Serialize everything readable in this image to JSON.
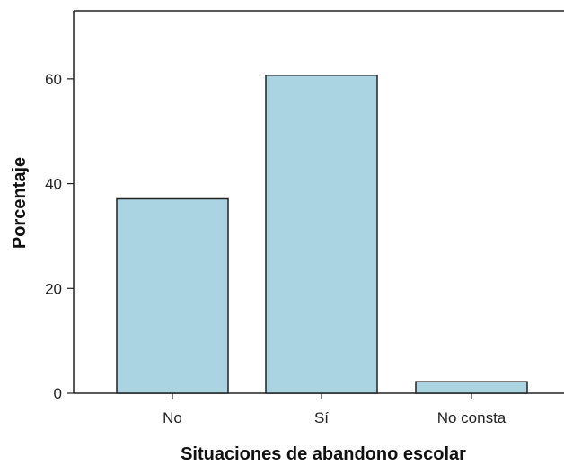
{
  "chart_data": {
    "type": "bar",
    "categories": [
      "No",
      "Sí",
      "No consta"
    ],
    "values": [
      37.1,
      60.7,
      2.2
    ],
    "title": "",
    "xlabel": "Situaciones de abandono escolar",
    "ylabel": "Porcentaje",
    "ylim": [
      0,
      73
    ],
    "yticks": [
      0,
      20,
      40,
      60
    ],
    "grid": false,
    "bar_color": "#aad4e2",
    "bar_edge_color": "#222222"
  }
}
